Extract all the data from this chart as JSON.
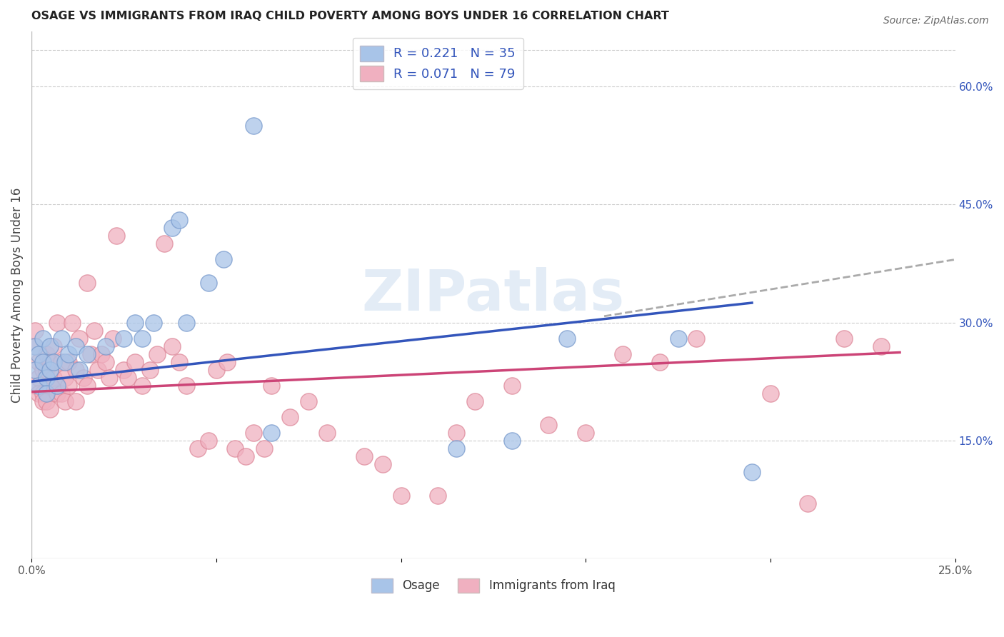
{
  "title": "OSAGE VS IMMIGRANTS FROM IRAQ CHILD POVERTY AMONG BOYS UNDER 16 CORRELATION CHART",
  "source": "Source: ZipAtlas.com",
  "ylabel": "Child Poverty Among Boys Under 16",
  "xlim": [
    0.0,
    0.25
  ],
  "ylim": [
    0.0,
    0.67
  ],
  "xticks": [
    0.0,
    0.05,
    0.1,
    0.15,
    0.2,
    0.25
  ],
  "xticklabels": [
    "0.0%",
    "",
    "",
    "",
    "",
    "25.0%"
  ],
  "yticks_right": [
    0.15,
    0.3,
    0.45,
    0.6
  ],
  "yticklabels_right": [
    "15.0%",
    "30.0%",
    "45.0%",
    "60.0%"
  ],
  "grid_color": "#cccccc",
  "background_color": "#ffffff",
  "osage_color": "#a8c4e8",
  "osage_edge_color": "#7799cc",
  "iraq_color": "#f0b0c0",
  "iraq_edge_color": "#dd8899",
  "osage_line_color": "#3355bb",
  "iraq_line_color": "#cc4477",
  "dashed_line_color": "#aaaaaa",
  "legend_R_osage": "R = 0.221",
  "legend_N_osage": "N = 35",
  "legend_R_iraq": "R = 0.071",
  "legend_N_iraq": "N = 79",
  "watermark": "ZIPatlas",
  "osage_scatter_x": [
    0.001,
    0.001,
    0.002,
    0.002,
    0.003,
    0.003,
    0.004,
    0.004,
    0.005,
    0.005,
    0.006,
    0.007,
    0.008,
    0.009,
    0.01,
    0.012,
    0.013,
    0.015,
    0.02,
    0.025,
    0.028,
    0.03,
    0.033,
    0.038,
    0.04,
    0.042,
    0.048,
    0.052,
    0.06,
    0.065,
    0.115,
    0.13,
    0.145,
    0.175,
    0.195
  ],
  "osage_scatter_y": [
    0.24,
    0.27,
    0.22,
    0.26,
    0.25,
    0.28,
    0.23,
    0.21,
    0.24,
    0.27,
    0.25,
    0.22,
    0.28,
    0.25,
    0.26,
    0.27,
    0.24,
    0.26,
    0.27,
    0.28,
    0.3,
    0.28,
    0.3,
    0.42,
    0.43,
    0.3,
    0.35,
    0.38,
    0.55,
    0.16,
    0.14,
    0.15,
    0.28,
    0.28,
    0.11
  ],
  "iraq_scatter_x": [
    0.001,
    0.001,
    0.001,
    0.002,
    0.002,
    0.002,
    0.003,
    0.003,
    0.003,
    0.004,
    0.004,
    0.004,
    0.005,
    0.005,
    0.005,
    0.006,
    0.006,
    0.007,
    0.007,
    0.007,
    0.008,
    0.008,
    0.009,
    0.009,
    0.01,
    0.01,
    0.011,
    0.012,
    0.012,
    0.013,
    0.014,
    0.015,
    0.015,
    0.016,
    0.017,
    0.018,
    0.019,
    0.02,
    0.021,
    0.022,
    0.023,
    0.025,
    0.026,
    0.028,
    0.03,
    0.032,
    0.034,
    0.036,
    0.038,
    0.04,
    0.042,
    0.045,
    0.048,
    0.05,
    0.053,
    0.055,
    0.058,
    0.06,
    0.063,
    0.065,
    0.07,
    0.075,
    0.08,
    0.09,
    0.095,
    0.1,
    0.11,
    0.115,
    0.12,
    0.13,
    0.14,
    0.15,
    0.16,
    0.17,
    0.18,
    0.2,
    0.21,
    0.22,
    0.23
  ],
  "iraq_scatter_y": [
    0.22,
    0.27,
    0.29,
    0.23,
    0.25,
    0.21,
    0.24,
    0.21,
    0.2,
    0.26,
    0.24,
    0.2,
    0.22,
    0.25,
    0.19,
    0.23,
    0.27,
    0.21,
    0.22,
    0.3,
    0.25,
    0.21,
    0.23,
    0.2,
    0.22,
    0.25,
    0.3,
    0.24,
    0.2,
    0.28,
    0.23,
    0.35,
    0.22,
    0.26,
    0.29,
    0.24,
    0.26,
    0.25,
    0.23,
    0.28,
    0.41,
    0.24,
    0.23,
    0.25,
    0.22,
    0.24,
    0.26,
    0.4,
    0.27,
    0.25,
    0.22,
    0.14,
    0.15,
    0.24,
    0.25,
    0.14,
    0.13,
    0.16,
    0.14,
    0.22,
    0.18,
    0.2,
    0.16,
    0.13,
    0.12,
    0.08,
    0.08,
    0.16,
    0.2,
    0.22,
    0.17,
    0.16,
    0.26,
    0.25,
    0.28,
    0.21,
    0.07,
    0.28,
    0.27
  ],
  "osage_line_x0": 0.0,
  "osage_line_x1": 0.195,
  "osage_line_y0": 0.225,
  "osage_line_y1": 0.325,
  "dashed_line_x0": 0.155,
  "dashed_line_x1": 0.25,
  "dashed_line_y0": 0.308,
  "dashed_line_y1": 0.38,
  "iraq_line_x0": 0.0,
  "iraq_line_x1": 0.235,
  "iraq_line_y0": 0.212,
  "iraq_line_y1": 0.262
}
